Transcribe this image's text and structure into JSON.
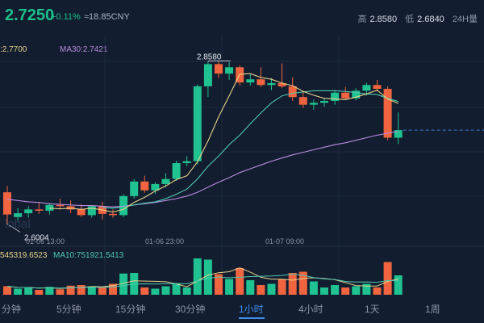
{
  "header": {
    "price": "2.7250",
    "change": "+0.11%",
    "cny": "≈18.85CNY",
    "high_label": "高",
    "high_value": "2.8580",
    "low_label": "低",
    "low_value": "2.6840",
    "period": "24H量"
  },
  "indicators": {
    "ma_short": ":2.7700",
    "ma30": "MA30:2.7421",
    "vol_ma": "545319.6523",
    "vol_ma10": "MA10:751921.5413"
  },
  "watermark": "lobal",
  "timeframes": [
    {
      "label": "分钟"
    },
    {
      "label": "5分钟"
    },
    {
      "label": "15分钟"
    },
    {
      "label": "30分钟"
    },
    {
      "label": "1小时"
    },
    {
      "label": "4小时"
    },
    {
      "label": "1天"
    },
    {
      "label": "1周"
    }
  ],
  "active_timeframe": "1小时",
  "colors": {
    "up": "#1fc290",
    "down": "#f0653f",
    "ma_yellow": "#e8d38a",
    "ma_teal": "#4ec9b0",
    "ma_purple": "#b98be0",
    "background": "#121d2f"
  },
  "chart_data": {
    "type": "candlestick",
    "price_range": [
      2.585,
      2.87
    ],
    "x_labels": [
      "01-06 13:00",
      "01-06 23:00",
      "01-07 09:00"
    ],
    "annotations": {
      "high": "2.8580",
      "low": "2.6004"
    },
    "candles": [
      {
        "o": 2.651,
        "h": 2.661,
        "l": 2.601,
        "c": 2.616
      },
      {
        "o": 2.612,
        "h": 2.626,
        "l": 2.606,
        "c": 2.618
      },
      {
        "o": 2.618,
        "h": 2.629,
        "l": 2.611,
        "c": 2.624
      },
      {
        "o": 2.624,
        "h": 2.636,
        "l": 2.617,
        "c": 2.622
      },
      {
        "o": 2.622,
        "h": 2.634,
        "l": 2.616,
        "c": 2.631
      },
      {
        "o": 2.631,
        "h": 2.641,
        "l": 2.624,
        "c": 2.629
      },
      {
        "o": 2.629,
        "h": 2.638,
        "l": 2.618,
        "c": 2.624
      },
      {
        "o": 2.624,
        "h": 2.632,
        "l": 2.612,
        "c": 2.615
      },
      {
        "o": 2.615,
        "h": 2.631,
        "l": 2.611,
        "c": 2.629
      },
      {
        "o": 2.629,
        "h": 2.636,
        "l": 2.608,
        "c": 2.617
      },
      {
        "o": 2.617,
        "h": 2.624,
        "l": 2.611,
        "c": 2.615
      },
      {
        "o": 2.615,
        "h": 2.648,
        "l": 2.612,
        "c": 2.645
      },
      {
        "o": 2.645,
        "h": 2.672,
        "l": 2.641,
        "c": 2.668
      },
      {
        "o": 2.668,
        "h": 2.677,
        "l": 2.65,
        "c": 2.654
      },
      {
        "o": 2.654,
        "h": 2.667,
        "l": 2.648,
        "c": 2.664
      },
      {
        "o": 2.664,
        "h": 2.681,
        "l": 2.659,
        "c": 2.672
      },
      {
        "o": 2.672,
        "h": 2.701,
        "l": 2.669,
        "c": 2.697
      },
      {
        "o": 2.697,
        "h": 2.708,
        "l": 2.692,
        "c": 2.7
      },
      {
        "o": 2.7,
        "h": 2.821,
        "l": 2.695,
        "c": 2.818
      },
      {
        "o": 2.818,
        "h": 2.858,
        "l": 2.801,
        "c": 2.853
      },
      {
        "o": 2.853,
        "h": 2.857,
        "l": 2.831,
        "c": 2.838
      },
      {
        "o": 2.838,
        "h": 2.856,
        "l": 2.828,
        "c": 2.848
      },
      {
        "o": 2.848,
        "h": 2.851,
        "l": 2.819,
        "c": 2.824
      },
      {
        "o": 2.824,
        "h": 2.837,
        "l": 2.819,
        "c": 2.829
      },
      {
        "o": 2.829,
        "h": 2.848,
        "l": 2.817,
        "c": 2.82
      },
      {
        "o": 2.82,
        "h": 2.831,
        "l": 2.812,
        "c": 2.823
      },
      {
        "o": 2.823,
        "h": 2.854,
        "l": 2.815,
        "c": 2.818
      },
      {
        "o": 2.818,
        "h": 2.832,
        "l": 2.795,
        "c": 2.801
      },
      {
        "o": 2.801,
        "h": 2.81,
        "l": 2.784,
        "c": 2.789
      },
      {
        "o": 2.789,
        "h": 2.797,
        "l": 2.781,
        "c": 2.792
      },
      {
        "o": 2.792,
        "h": 2.8,
        "l": 2.786,
        "c": 2.795
      },
      {
        "o": 2.795,
        "h": 2.812,
        "l": 2.789,
        "c": 2.808
      },
      {
        "o": 2.808,
        "h": 2.817,
        "l": 2.797,
        "c": 2.799
      },
      {
        "o": 2.799,
        "h": 2.815,
        "l": 2.796,
        "c": 2.811
      },
      {
        "o": 2.811,
        "h": 2.824,
        "l": 2.803,
        "c": 2.82
      },
      {
        "o": 2.82,
        "h": 2.828,
        "l": 2.81,
        "c": 2.814
      },
      {
        "o": 2.814,
        "h": 2.818,
        "l": 2.733,
        "c": 2.737
      },
      {
        "o": 2.737,
        "h": 2.777,
        "l": 2.727,
        "c": 2.749
      }
    ],
    "volumes": [
      0.14,
      0.1,
      0.12,
      0.08,
      0.13,
      0.09,
      0.15,
      0.16,
      0.14,
      0.12,
      0.18,
      0.35,
      0.36,
      0.12,
      0.1,
      0.14,
      0.18,
      0.12,
      0.6,
      0.58,
      0.34,
      0.26,
      0.44,
      0.24,
      0.16,
      0.18,
      0.26,
      0.36,
      0.38,
      0.22,
      0.12,
      0.16,
      0.12,
      0.14,
      0.18,
      0.12,
      0.54,
      0.32
    ],
    "ma_yellow": [
      null,
      null,
      null,
      null,
      2.626,
      2.625,
      2.626,
      2.624,
      2.626,
      2.623,
      2.62,
      2.624,
      2.635,
      2.643,
      2.653,
      2.661,
      2.671,
      2.677,
      2.699,
      2.732,
      2.77,
      2.803,
      2.837,
      2.838,
      2.832,
      2.829,
      2.823,
      2.819,
      2.81,
      2.804,
      2.799,
      2.798,
      2.797,
      2.801,
      2.806,
      2.812,
      2.798,
      2.791
    ],
    "ma_teal": [
      null,
      null,
      null,
      null,
      null,
      null,
      null,
      null,
      null,
      2.627,
      2.626,
      2.628,
      2.631,
      2.634,
      2.636,
      2.641,
      2.648,
      2.656,
      2.672,
      2.692,
      2.708,
      2.726,
      2.741,
      2.759,
      2.776,
      2.792,
      2.803,
      2.807,
      2.809,
      2.811,
      2.811,
      2.811,
      2.81,
      2.808,
      2.806,
      2.805,
      2.799,
      2.794
    ],
    "ma_purple": [
      2.64,
      2.638,
      2.636,
      2.635,
      2.633,
      2.632,
      2.631,
      2.63,
      2.63,
      2.629,
      2.628,
      2.629,
      2.631,
      2.633,
      2.635,
      2.638,
      2.641,
      2.645,
      2.651,
      2.659,
      2.667,
      2.674,
      2.682,
      2.688,
      2.694,
      2.7,
      2.705,
      2.71,
      2.714,
      2.718,
      2.722,
      2.726,
      2.729,
      2.733,
      2.737,
      2.741,
      2.744,
      2.747
    ]
  }
}
